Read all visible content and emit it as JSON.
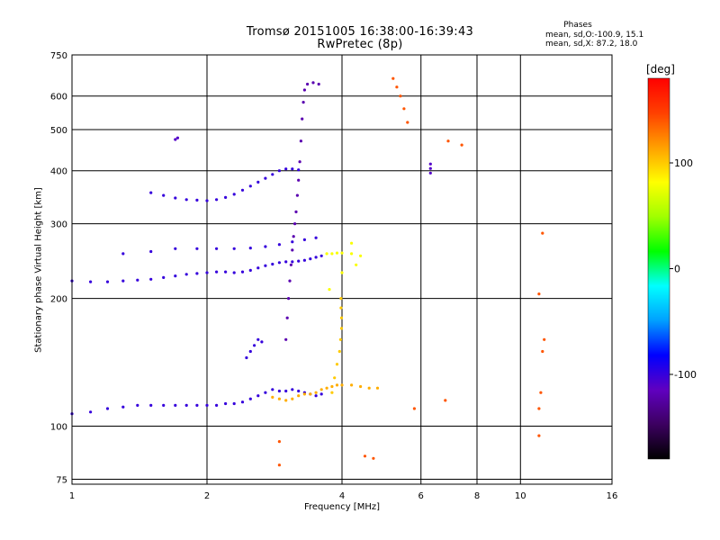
{
  "title": {
    "line1": "Tromsø 20151005 16:38:00-16:39:43",
    "line2": "RwPretec (8p)"
  },
  "phase_info": {
    "title": "Phases",
    "o_mode": "mean, sd,O:-100.9, 15.1",
    "x_mode": "mean, sd,X:  87.2, 18.0"
  },
  "colorbar": {
    "unit": "[deg]",
    "ticks": [
      "100",
      "0",
      "-100"
    ],
    "tick_values": [
      100,
      0,
      -100
    ],
    "range": [
      -180,
      180
    ],
    "colors": [
      "#000000",
      "#3c0060",
      "#6000c0",
      "#0000ff",
      "#00a0ff",
      "#00ffff",
      "#00ff00",
      "#a0ff00",
      "#ffff00",
      "#ffa000",
      "#ff4000",
      "#ff0000"
    ]
  },
  "chart_data": {
    "type": "scatter",
    "title": "Tromsø 20151005 16:38:00-16:39:43",
    "subtitle": "RwPretec (8p)",
    "xlabel": "Frequency [MHz]",
    "ylabel": "Stationary phase Virtual Height [km]",
    "x_scale": "log",
    "y_scale": "log",
    "xlim": [
      1,
      16
    ],
    "ylim": [
      73,
      750
    ],
    "x_ticks": [
      "1",
      "2",
      "4",
      "6",
      "8",
      "10",
      "16"
    ],
    "x_tick_values": [
      1,
      2,
      4,
      6,
      8,
      10,
      16
    ],
    "y_ticks": [
      "750",
      "600",
      "500",
      "400",
      "300",
      "200",
      "100",
      "75"
    ],
    "y_tick_values": [
      750,
      600,
      500,
      400,
      300,
      200,
      100,
      75
    ],
    "grid": true,
    "color_encoding": "phase in degrees",
    "traces": [
      {
        "name": "",
        "phase": -100,
        "points": [
          [
            1.0,
            107
          ],
          [
            1.1,
            108
          ],
          [
            1.2,
            110
          ],
          [
            1.3,
            111
          ],
          [
            1.4,
            112
          ],
          [
            1.5,
            112
          ],
          [
            1.6,
            112
          ],
          [
            1.7,
            112
          ],
          [
            1.8,
            112
          ],
          [
            1.9,
            112
          ],
          [
            2.0,
            112
          ],
          [
            2.1,
            112
          ],
          [
            2.2,
            113
          ],
          [
            2.3,
            113
          ],
          [
            2.4,
            114
          ],
          [
            2.5,
            116
          ],
          [
            2.6,
            118
          ],
          [
            2.7,
            120
          ],
          [
            2.8,
            122
          ],
          [
            2.9,
            121
          ],
          [
            3.0,
            121
          ],
          [
            3.1,
            122
          ],
          [
            3.2,
            121
          ],
          [
            3.3,
            120
          ],
          [
            3.4,
            119
          ],
          [
            3.5,
            118
          ],
          [
            3.6,
            119
          ]
        ]
      },
      {
        "name": "",
        "phase": 110,
        "points": [
          [
            2.8,
            117
          ],
          [
            2.9,
            116
          ],
          [
            3.0,
            115
          ],
          [
            3.1,
            116
          ],
          [
            3.2,
            118
          ],
          [
            3.3,
            119
          ],
          [
            3.4,
            119
          ],
          [
            3.5,
            120
          ],
          [
            3.6,
            122
          ],
          [
            3.7,
            123
          ],
          [
            3.8,
            124
          ],
          [
            3.9,
            125
          ],
          [
            4.0,
            125
          ],
          [
            4.2,
            125
          ],
          [
            4.4,
            124
          ],
          [
            4.6,
            123
          ],
          [
            4.8,
            123
          ]
        ]
      },
      {
        "name": "",
        "phase": 100,
        "points": [
          [
            3.8,
            120
          ],
          [
            3.85,
            130
          ],
          [
            3.9,
            140
          ],
          [
            3.95,
            150
          ],
          [
            3.97,
            160
          ],
          [
            3.99,
            170
          ],
          [
            3.99,
            180
          ],
          [
            3.98,
            190
          ],
          [
            3.98,
            200
          ]
        ]
      },
      {
        "name": "",
        "phase": -100,
        "points": [
          [
            1.0,
            220
          ],
          [
            1.1,
            219
          ],
          [
            1.2,
            219
          ],
          [
            1.3,
            220
          ],
          [
            1.4,
            221
          ],
          [
            1.5,
            222
          ],
          [
            1.6,
            224
          ],
          [
            1.7,
            226
          ],
          [
            1.8,
            228
          ],
          [
            1.9,
            229
          ],
          [
            2.0,
            230
          ],
          [
            2.1,
            231
          ],
          [
            2.2,
            231
          ],
          [
            2.3,
            230
          ],
          [
            2.4,
            231
          ],
          [
            2.5,
            233
          ],
          [
            2.6,
            236
          ],
          [
            2.7,
            239
          ],
          [
            2.8,
            241
          ],
          [
            2.9,
            243
          ],
          [
            3.0,
            244
          ],
          [
            3.1,
            244
          ],
          [
            3.2,
            245
          ],
          [
            3.3,
            246
          ],
          [
            3.4,
            248
          ],
          [
            3.5,
            250
          ],
          [
            3.6,
            252
          ]
        ]
      },
      {
        "name": "",
        "phase": -100,
        "points": [
          [
            1.3,
            255
          ],
          [
            1.5,
            258
          ],
          [
            1.7,
            262
          ],
          [
            1.9,
            262
          ],
          [
            2.1,
            262
          ],
          [
            2.3,
            262
          ],
          [
            2.5,
            263
          ],
          [
            2.7,
            265
          ],
          [
            2.9,
            268
          ],
          [
            3.1,
            272
          ],
          [
            3.3,
            275
          ],
          [
            3.5,
            278
          ]
        ]
      },
      {
        "name": "",
        "phase": -100,
        "points": [
          [
            1.5,
            355
          ],
          [
            1.6,
            350
          ],
          [
            1.7,
            345
          ],
          [
            1.8,
            342
          ],
          [
            1.9,
            341
          ],
          [
            2.0,
            340
          ],
          [
            2.1,
            342
          ],
          [
            2.2,
            346
          ],
          [
            2.3,
            352
          ],
          [
            2.4,
            360
          ],
          [
            2.5,
            368
          ],
          [
            2.6,
            376
          ],
          [
            2.7,
            384
          ],
          [
            2.8,
            392
          ],
          [
            2.9,
            400
          ],
          [
            3.0,
            404
          ],
          [
            3.1,
            404
          ],
          [
            3.2,
            402
          ]
        ]
      },
      {
        "name": "",
        "phase": -120,
        "points": [
          [
            3.0,
            160
          ],
          [
            3.02,
            180
          ],
          [
            3.04,
            200
          ],
          [
            3.06,
            220
          ],
          [
            3.08,
            240
          ],
          [
            3.1,
            260
          ],
          [
            3.12,
            280
          ],
          [
            3.14,
            300
          ],
          [
            3.16,
            320
          ],
          [
            3.18,
            350
          ],
          [
            3.2,
            380
          ],
          [
            3.22,
            420
          ],
          [
            3.24,
            470
          ],
          [
            3.26,
            530
          ],
          [
            3.28,
            580
          ],
          [
            3.3,
            620
          ],
          [
            3.35,
            640
          ],
          [
            3.45,
            645
          ],
          [
            3.55,
            640
          ]
        ]
      },
      {
        "name": "",
        "phase": -100,
        "points": [
          [
            2.45,
            145
          ],
          [
            2.5,
            150
          ],
          [
            2.55,
            155
          ],
          [
            2.6,
            160
          ],
          [
            2.65,
            158
          ]
        ]
      },
      {
        "name": "",
        "phase": -110,
        "points": [
          [
            1.7,
            474
          ],
          [
            1.72,
            478
          ]
        ]
      },
      {
        "name": "",
        "phase": -110,
        "points": [
          [
            6.3,
            395
          ],
          [
            6.3,
            405
          ],
          [
            6.3,
            415
          ]
        ]
      },
      {
        "name": "",
        "phase": 140,
        "points": [
          [
            5.2,
            660
          ],
          [
            5.3,
            630
          ],
          [
            5.4,
            600
          ],
          [
            5.5,
            560
          ],
          [
            5.6,
            520
          ],
          [
            6.9,
            470
          ],
          [
            7.4,
            460
          ],
          [
            5.8,
            110
          ],
          [
            6.8,
            115
          ],
          [
            11.0,
            95
          ],
          [
            11.0,
            110
          ],
          [
            11.1,
            120
          ],
          [
            11.2,
            150
          ],
          [
            11.3,
            160
          ],
          [
            11.0,
            205
          ],
          [
            11.2,
            285
          ],
          [
            4.5,
            85
          ],
          [
            4.7,
            84
          ],
          [
            2.9,
            92
          ],
          [
            2.9,
            81
          ]
        ]
      },
      {
        "name": "",
        "phase": 80,
        "points": [
          [
            3.7,
            255
          ],
          [
            3.8,
            255
          ],
          [
            3.9,
            256
          ],
          [
            4.0,
            256
          ],
          [
            4.2,
            255
          ],
          [
            4.4,
            252
          ],
          [
            4.3,
            240
          ],
          [
            3.75,
            210
          ],
          [
            4.0,
            230
          ],
          [
            4.2,
            270
          ]
        ]
      }
    ]
  }
}
